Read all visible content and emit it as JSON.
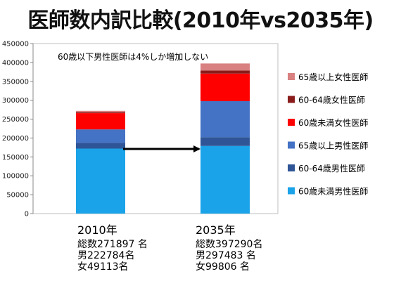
{
  "title": "医師数内訳比較(2010年vs2035年)",
  "chart_data": {
    "type": "bar",
    "stacked": true,
    "categories": [
      "2010年",
      "2035年"
    ],
    "ylim": [
      0,
      450000
    ],
    "yticks": [
      0,
      50000,
      100000,
      150000,
      200000,
      250000,
      300000,
      350000,
      400000,
      450000
    ],
    "grid": false,
    "legend_position": "right",
    "annotation": "60歳以下男性医師は4%しか増加しない",
    "series": [
      {
        "name": "60歳未満男性医師",
        "color": "#1aa3e8",
        "values": [
          172000,
          179000
        ]
      },
      {
        "name": "60-64歳男性医師",
        "color": "#2f5597",
        "values": [
          15000,
          23000
        ]
      },
      {
        "name": "65歳以上男性医師",
        "color": "#4472c4",
        "values": [
          35784,
          95483
        ]
      },
      {
        "name": "60歳未満女性医師",
        "color": "#ff0000",
        "values": [
          43000,
          73000
        ]
      },
      {
        "name": "60-64歳女性医師",
        "color": "#8b1c1c",
        "values": [
          2500,
          8000
        ]
      },
      {
        "name": "65歳以上女性医師",
        "color": "#d98080",
        "values": [
          3613,
          18806
        ]
      }
    ]
  },
  "summaries": [
    {
      "year": "2010年",
      "total": "総数271897 名",
      "male": "男222784名",
      "female": "女49113名"
    },
    {
      "year": "2035年",
      "total": "総数397290名",
      "male": "男297483 名",
      "female": "女99806 名"
    }
  ]
}
